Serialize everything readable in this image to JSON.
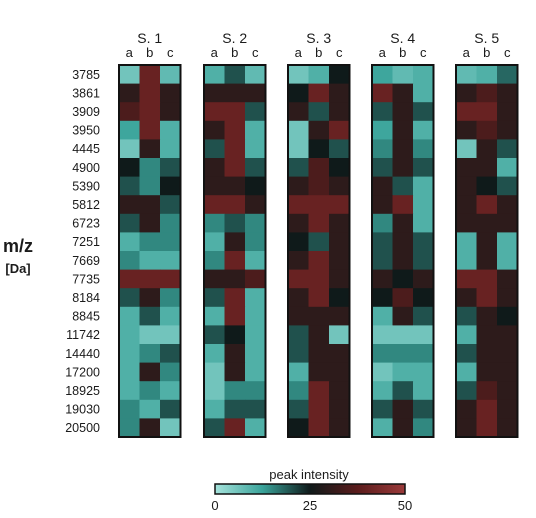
{
  "chart_data": {
    "type": "heatmap",
    "title": "",
    "sample_labels": [
      "S. 1",
      "S. 2",
      "S. 3",
      "S. 4",
      "S. 5"
    ],
    "replicate_labels": [
      "a",
      "b",
      "c"
    ],
    "y_axis_label": {
      "line1": "m/z",
      "line2": "[Da]"
    },
    "row_labels": [
      "3785",
      "3861",
      "3909",
      "3950",
      "4445",
      "4900",
      "5390",
      "5812",
      "6723",
      "7251",
      "7669",
      "7735",
      "8184",
      "8845",
      "11742",
      "14440",
      "17200",
      "18925",
      "19030",
      "20500"
    ],
    "colorbar": {
      "label": "peak intensity",
      "min": 0,
      "max": 50,
      "ticks": [
        "0",
        "25",
        "50"
      ],
      "colors": [
        "#a6e3dc",
        "#3aa39a",
        "#0f1a1a",
        "#5b1c1c",
        "#9b3a3a"
      ]
    },
    "values": [
      [
        [
          6,
          40,
          8
        ],
        [
          10,
          20,
          8
        ],
        [
          6,
          10,
          25
        ],
        [
          12,
          8,
          10
        ],
        [
          8,
          10,
          18
        ]
      ],
      [
        [
          30,
          40,
          30
        ],
        [
          30,
          30,
          30
        ],
        [
          25,
          40,
          30
        ],
        [
          40,
          30,
          10
        ],
        [
          30,
          35,
          30
        ]
      ],
      [
        [
          35,
          40,
          30
        ],
        [
          40,
          40,
          20
        ],
        [
          30,
          20,
          30
        ],
        [
          20,
          30,
          20
        ],
        [
          40,
          40,
          30
        ]
      ],
      [
        [
          12,
          40,
          10
        ],
        [
          30,
          40,
          10
        ],
        [
          6,
          30,
          40
        ],
        [
          12,
          30,
          10
        ],
        [
          30,
          35,
          30
        ]
      ],
      [
        [
          6,
          30,
          10
        ],
        [
          20,
          40,
          10
        ],
        [
          6,
          25,
          20
        ],
        [
          15,
          30,
          15
        ],
        [
          6,
          30,
          20
        ]
      ],
      [
        [
          25,
          15,
          20
        ],
        [
          30,
          40,
          20
        ],
        [
          20,
          35,
          25
        ],
        [
          20,
          30,
          20
        ],
        [
          30,
          30,
          10
        ]
      ],
      [
        [
          20,
          15,
          25
        ],
        [
          30,
          30,
          25
        ],
        [
          30,
          35,
          30
        ],
        [
          30,
          20,
          10
        ],
        [
          30,
          25,
          20
        ]
      ],
      [
        [
          30,
          30,
          20
        ],
        [
          40,
          40,
          30
        ],
        [
          40,
          40,
          40
        ],
        [
          30,
          40,
          10
        ],
        [
          30,
          40,
          30
        ]
      ],
      [
        [
          20,
          30,
          15
        ],
        [
          15,
          20,
          15
        ],
        [
          30,
          40,
          30
        ],
        [
          15,
          30,
          10
        ],
        [
          30,
          30,
          30
        ]
      ],
      [
        [
          10,
          15,
          15
        ],
        [
          10,
          30,
          15
        ],
        [
          25,
          20,
          30
        ],
        [
          20,
          30,
          20
        ],
        [
          10,
          30,
          10
        ]
      ],
      [
        [
          15,
          10,
          10
        ],
        [
          15,
          40,
          10
        ],
        [
          30,
          40,
          30
        ],
        [
          20,
          30,
          20
        ],
        [
          10,
          30,
          10
        ]
      ],
      [
        [
          40,
          40,
          40
        ],
        [
          30,
          30,
          35
        ],
        [
          40,
          40,
          30
        ],
        [
          30,
          25,
          30
        ],
        [
          40,
          40,
          30
        ]
      ],
      [
        [
          20,
          30,
          15
        ],
        [
          20,
          40,
          10
        ],
        [
          30,
          40,
          25
        ],
        [
          25,
          35,
          25
        ],
        [
          30,
          40,
          30
        ]
      ],
      [
        [
          10,
          20,
          10
        ],
        [
          10,
          40,
          10
        ],
        [
          30,
          30,
          30
        ],
        [
          10,
          30,
          20
        ],
        [
          20,
          30,
          25
        ]
      ],
      [
        [
          10,
          6,
          6
        ],
        [
          20,
          25,
          10
        ],
        [
          20,
          30,
          6
        ],
        [
          6,
          6,
          6
        ],
        [
          10,
          30,
          30
        ]
      ],
      [
        [
          10,
          15,
          20
        ],
        [
          10,
          30,
          10
        ],
        [
          20,
          30,
          30
        ],
        [
          15,
          15,
          15
        ],
        [
          20,
          30,
          30
        ]
      ],
      [
        [
          10,
          30,
          15
        ],
        [
          6,
          30,
          10
        ],
        [
          10,
          30,
          30
        ],
        [
          6,
          10,
          10
        ],
        [
          10,
          30,
          30
        ]
      ],
      [
        [
          10,
          15,
          10
        ],
        [
          6,
          15,
          15
        ],
        [
          15,
          40,
          30
        ],
        [
          10,
          20,
          10
        ],
        [
          20,
          35,
          30
        ]
      ],
      [
        [
          15,
          10,
          20
        ],
        [
          10,
          20,
          20
        ],
        [
          20,
          40,
          30
        ],
        [
          20,
          30,
          20
        ],
        [
          30,
          40,
          30
        ]
      ],
      [
        [
          15,
          30,
          6
        ],
        [
          20,
          40,
          10
        ],
        [
          25,
          40,
          30
        ],
        [
          10,
          30,
          15
        ],
        [
          30,
          40,
          30
        ]
      ]
    ]
  }
}
